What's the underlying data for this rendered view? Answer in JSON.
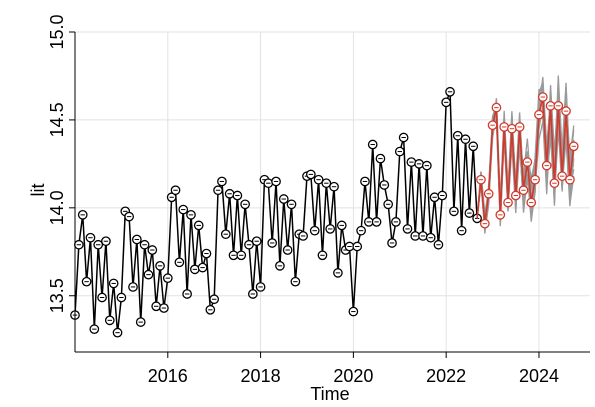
{
  "chart_data": {
    "type": "line",
    "xlabel": "Time",
    "ylabel": "lit",
    "xlim": [
      2014.0,
      2025.1
    ],
    "ylim": [
      13.18,
      15.0
    ],
    "x_ticks": [
      2016,
      2018,
      2020,
      2022,
      2024
    ],
    "x_tick_labels": [
      "2016",
      "2018",
      "2020",
      "2022",
      "2024"
    ],
    "y_ticks": [
      13.5,
      14.0,
      14.5,
      15.0
    ],
    "y_tick_labels": [
      "13.5",
      "14.0",
      "14.5",
      "15.0"
    ],
    "grid": true,
    "start": 2014.0,
    "step": 0.0833333,
    "colors": {
      "observed": "#000000",
      "forecast": "#d0392b",
      "simulations": "#9a9a9a"
    },
    "series": [
      {
        "role": "observed",
        "values": [
          13.39,
          13.79,
          13.96,
          13.58,
          13.83,
          13.31,
          13.79,
          13.49,
          13.81,
          13.36,
          13.57,
          13.29,
          13.49,
          13.98,
          13.95,
          13.55,
          13.82,
          13.35,
          13.79,
          13.62,
          13.76,
          13.44,
          13.67,
          13.43,
          13.6,
          14.06,
          14.1,
          13.69,
          13.99,
          13.51,
          13.96,
          13.65,
          13.9,
          13.66,
          13.74,
          13.42,
          13.48,
          14.1,
          14.15,
          13.85,
          14.08,
          13.73,
          14.07,
          13.73,
          14.02,
          13.79,
          13.51,
          13.81,
          13.55,
          14.16,
          14.14,
          13.8,
          14.15,
          13.67,
          14.05,
          13.76,
          14.02,
          13.58,
          13.85,
          13.84,
          14.18,
          14.19,
          13.87,
          14.16,
          13.73,
          14.14,
          13.88,
          14.12,
          13.63,
          13.9,
          13.76,
          13.78,
          13.41,
          13.78,
          13.87,
          14.15,
          13.92,
          14.36,
          13.92,
          14.28,
          14.13,
          14.02,
          13.8,
          13.92,
          14.32,
          14.4,
          13.88,
          14.26,
          13.84,
          14.25,
          13.84,
          14.24,
          13.83,
          14.06,
          13.79,
          14.07,
          14.6,
          14.66,
          13.98,
          14.41,
          13.87,
          14.39,
          13.97,
          14.35,
          13.94
        ]
      },
      {
        "role": "forecast",
        "values": [
          14.16,
          13.91,
          14.08,
          14.47,
          14.57,
          13.96,
          14.46,
          14.03,
          14.45,
          14.07,
          14.46,
          14.1,
          14.26,
          14.03,
          14.16,
          14.53,
          14.63,
          14.24,
          14.58,
          14.14,
          14.58,
          14.18,
          14.55,
          14.16,
          14.35
        ]
      }
    ]
  }
}
